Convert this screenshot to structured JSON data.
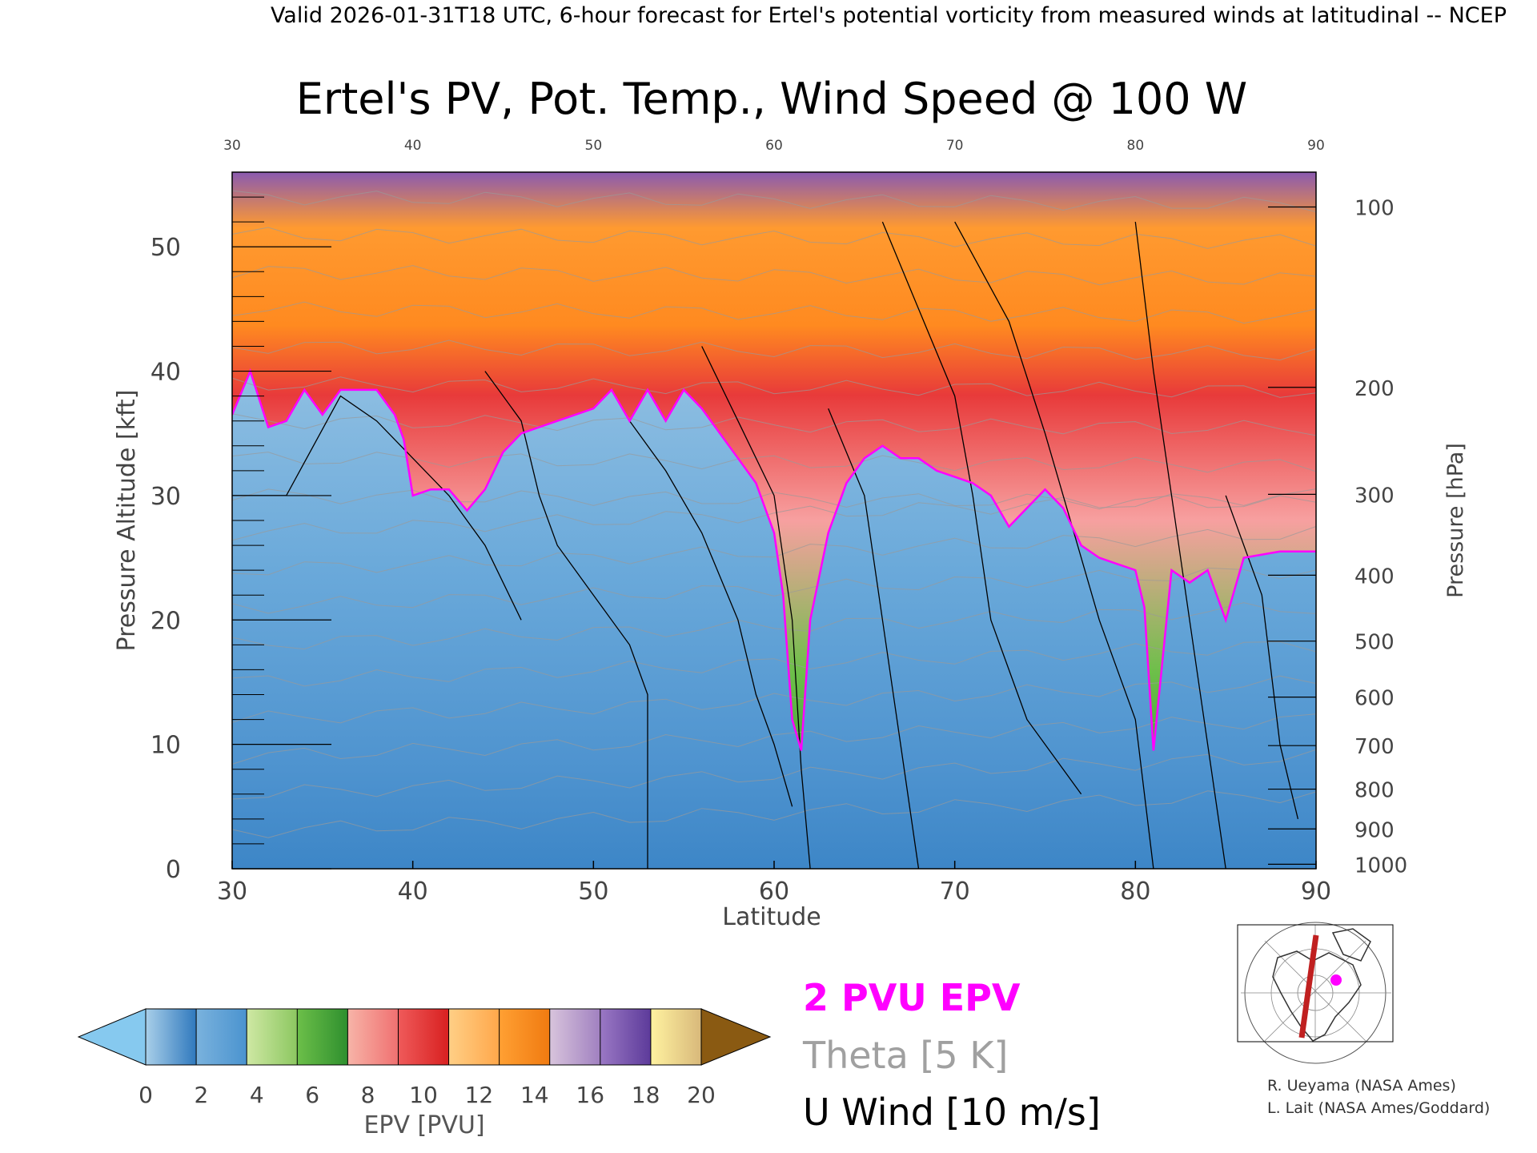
{
  "header": {
    "valid_line": "Valid 2026-01-31T18 UTC, 6-hour forecast for Ertel's potential vorticity from measured winds at latitudinal -- NCEP"
  },
  "chart_data": {
    "type": "heatmap",
    "title": "Ertel's PV, Pot. Temp., Wind Speed @ 100 W",
    "xlabel": "Latitude",
    "ylabel": "Pressure Altitude [kft]",
    "ylabel_right": "Pressure [hPa]",
    "xlim": [
      30,
      90
    ],
    "ylim": [
      0,
      56
    ],
    "x_ticks": [
      30,
      40,
      50,
      60,
      70,
      80,
      90
    ],
    "y_ticks": [
      0,
      10,
      20,
      30,
      40,
      50
    ],
    "pressure_ticks": [
      {
        "label": "100",
        "kft": 53.2
      },
      {
        "label": "200",
        "kft": 38.7
      },
      {
        "label": "300",
        "kft": 30.1
      },
      {
        "label": "400",
        "kft": 23.6
      },
      {
        "label": "500",
        "kft": 18.3
      },
      {
        "label": "600",
        "kft": 13.8
      },
      {
        "label": "700",
        "kft": 9.9
      },
      {
        "label": "800",
        "kft": 6.4
      },
      {
        "label": "900",
        "kft": 3.2
      },
      {
        "label": "1000",
        "kft": 0.36
      }
    ],
    "tropopause_2pvu_kft": [
      [
        30,
        36.5
      ],
      [
        31,
        40
      ],
      [
        32,
        35.5
      ],
      [
        33,
        36
      ],
      [
        34,
        38.5
      ],
      [
        35,
        36.5
      ],
      [
        36,
        38.5
      ],
      [
        37,
        38.5
      ],
      [
        38,
        38.5
      ],
      [
        39,
        36.5
      ],
      [
        39.5,
        34.5
      ],
      [
        40,
        30
      ],
      [
        41,
        30.5
      ],
      [
        42,
        30.5
      ],
      [
        43,
        28.8
      ],
      [
        44,
        30.5
      ],
      [
        45,
        33.5
      ],
      [
        46,
        35
      ],
      [
        47,
        35.5
      ],
      [
        48,
        36
      ],
      [
        49,
        36.5
      ],
      [
        50,
        37
      ],
      [
        51,
        38.5
      ],
      [
        52,
        36
      ],
      [
        53,
        38.5
      ],
      [
        54,
        36
      ],
      [
        55,
        38.5
      ],
      [
        56,
        37
      ],
      [
        57,
        35
      ],
      [
        58,
        33
      ],
      [
        59,
        31
      ],
      [
        60,
        27
      ],
      [
        60.5,
        22
      ],
      [
        61,
        12
      ],
      [
        61.5,
        9.5
      ],
      [
        62,
        20
      ],
      [
        63,
        27
      ],
      [
        64,
        31
      ],
      [
        65,
        33
      ],
      [
        66,
        34
      ],
      [
        67,
        33
      ],
      [
        68,
        33
      ],
      [
        69,
        32
      ],
      [
        70,
        31.5
      ],
      [
        71,
        31
      ],
      [
        72,
        30
      ],
      [
        73,
        27.5
      ],
      [
        74,
        29
      ],
      [
        75,
        30.5
      ],
      [
        76,
        29
      ],
      [
        77,
        26
      ],
      [
        78,
        25
      ],
      [
        79,
        24.5
      ],
      [
        80,
        24
      ],
      [
        80.5,
        21
      ],
      [
        81,
        9.5
      ],
      [
        82,
        24
      ],
      [
        83,
        23
      ],
      [
        84,
        24
      ],
      [
        85,
        20
      ],
      [
        86,
        25
      ],
      [
        88,
        25.5
      ],
      [
        90,
        25.5
      ]
    ],
    "colorbar": {
      "label": "EPV [PVU]",
      "ticks": [
        "0",
        "2",
        "4",
        "6",
        "8",
        "10",
        "12",
        "14",
        "16",
        "18",
        "20"
      ],
      "under_color": "#86c9ef",
      "over_color": "#8a5a12",
      "segments": [
        {
          "from": "#a9cfe9",
          "to": "#2e78bd"
        },
        {
          "from": "#7ab2dd",
          "to": "#4a93cf"
        },
        {
          "from": "#cfe8a4",
          "to": "#8cc760"
        },
        {
          "from": "#6cbf49",
          "to": "#2e8f2e"
        },
        {
          "from": "#f7b4a8",
          "to": "#f07070"
        },
        {
          "from": "#ef5a5a",
          "to": "#d82020"
        },
        {
          "from": "#ffcf86",
          "to": "#ffa74a"
        },
        {
          "from": "#ffa033",
          "to": "#f07a10"
        },
        {
          "from": "#d8c4dc",
          "to": "#a080c0"
        },
        {
          "from": "#9a78c4",
          "to": "#5c3a9a"
        },
        {
          "from": "#fff2a0",
          "to": "#d8b87a"
        }
      ]
    },
    "legend": {
      "items": [
        {
          "text": "2 PVU EPV",
          "color": "#ff00ff"
        },
        {
          "text": "Theta [5 K]",
          "color": "#a0a0a0"
        },
        {
          "text": "U Wind [10 m/s]",
          "color": "#000000"
        }
      ]
    },
    "credits": [
      "R. Ueyama (NASA Ames)",
      "L. Lait (NASA Ames/Goddard)"
    ],
    "colors": {
      "tropopause": "#ff00ff",
      "theta": "#9a9a9a",
      "wind": "#000000",
      "stratosphere_low": "#9fd06a",
      "stratosphere_mid": "#e84545",
      "stratosphere_high": "#ff9a30",
      "troposphere": "#5d9fd4"
    }
  }
}
